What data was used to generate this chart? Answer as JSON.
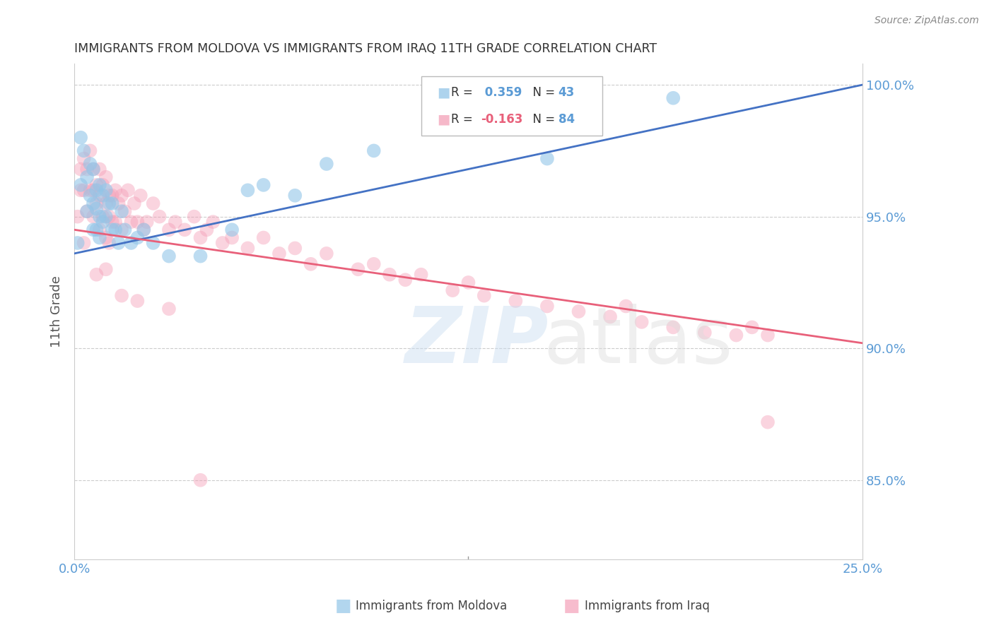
{
  "title": "IMMIGRANTS FROM MOLDOVA VS IMMIGRANTS FROM IRAQ 11TH GRADE CORRELATION CHART",
  "source": "Source: ZipAtlas.com",
  "ylabel": "11th Grade",
  "xlim": [
    0.0,
    0.25
  ],
  "ylim": [
    0.82,
    1.008
  ],
  "R_moldova": 0.359,
  "N_moldova": 43,
  "R_iraq": -0.163,
  "N_iraq": 84,
  "color_moldova": "#92C5E8",
  "color_iraq": "#F4A0B8",
  "color_moldova_line": "#4472C4",
  "color_iraq_line": "#E8607A",
  "color_axis_labels": "#5B9BD5",
  "moldova_x": [
    0.001,
    0.002,
    0.002,
    0.003,
    0.004,
    0.004,
    0.005,
    0.005,
    0.006,
    0.006,
    0.006,
    0.007,
    0.007,
    0.007,
    0.008,
    0.008,
    0.008,
    0.009,
    0.009,
    0.01,
    0.01,
    0.011,
    0.012,
    0.012,
    0.013,
    0.014,
    0.015,
    0.016,
    0.018,
    0.02,
    0.022,
    0.025,
    0.03,
    0.04,
    0.05,
    0.055,
    0.06,
    0.07,
    0.08,
    0.095,
    0.12,
    0.15,
    0.19
  ],
  "moldova_y": [
    0.94,
    0.98,
    0.962,
    0.975,
    0.965,
    0.952,
    0.97,
    0.958,
    0.968,
    0.955,
    0.945,
    0.96,
    0.953,
    0.945,
    0.962,
    0.95,
    0.942,
    0.958,
    0.948,
    0.96,
    0.95,
    0.955,
    0.945,
    0.955,
    0.945,
    0.94,
    0.952,
    0.945,
    0.94,
    0.942,
    0.945,
    0.94,
    0.935,
    0.935,
    0.945,
    0.96,
    0.962,
    0.958,
    0.97,
    0.975,
    0.985,
    0.972,
    0.995
  ],
  "moldova_sizes": [
    200,
    150,
    120,
    100,
    100,
    100,
    100,
    100,
    100,
    100,
    100,
    100,
    100,
    100,
    100,
    100,
    100,
    100,
    100,
    100,
    100,
    100,
    100,
    100,
    100,
    100,
    100,
    100,
    100,
    100,
    100,
    100,
    100,
    100,
    100,
    100,
    100,
    100,
    100,
    100,
    100,
    100,
    100
  ],
  "iraq_x": [
    0.001,
    0.002,
    0.002,
    0.003,
    0.003,
    0.004,
    0.004,
    0.005,
    0.005,
    0.006,
    0.006,
    0.006,
    0.007,
    0.007,
    0.008,
    0.008,
    0.008,
    0.009,
    0.009,
    0.01,
    0.01,
    0.01,
    0.011,
    0.011,
    0.011,
    0.012,
    0.012,
    0.013,
    0.013,
    0.014,
    0.015,
    0.015,
    0.016,
    0.017,
    0.018,
    0.019,
    0.02,
    0.021,
    0.022,
    0.023,
    0.025,
    0.027,
    0.03,
    0.032,
    0.035,
    0.038,
    0.04,
    0.042,
    0.044,
    0.047,
    0.05,
    0.055,
    0.06,
    0.065,
    0.07,
    0.075,
    0.08,
    0.09,
    0.095,
    0.1,
    0.105,
    0.11,
    0.12,
    0.125,
    0.13,
    0.14,
    0.15,
    0.16,
    0.17,
    0.175,
    0.18,
    0.19,
    0.2,
    0.21,
    0.215,
    0.22,
    0.003,
    0.007,
    0.01,
    0.015,
    0.02,
    0.03,
    0.04,
    0.22
  ],
  "iraq_y": [
    0.95,
    0.968,
    0.96,
    0.972,
    0.96,
    0.968,
    0.952,
    0.975,
    0.96,
    0.968,
    0.96,
    0.95,
    0.962,
    0.955,
    0.968,
    0.958,
    0.945,
    0.962,
    0.95,
    0.965,
    0.955,
    0.942,
    0.958,
    0.95,
    0.94,
    0.958,
    0.948,
    0.96,
    0.948,
    0.955,
    0.958,
    0.945,
    0.952,
    0.96,
    0.948,
    0.955,
    0.948,
    0.958,
    0.945,
    0.948,
    0.955,
    0.95,
    0.945,
    0.948,
    0.945,
    0.95,
    0.942,
    0.945,
    0.948,
    0.94,
    0.942,
    0.938,
    0.942,
    0.936,
    0.938,
    0.932,
    0.936,
    0.93,
    0.932,
    0.928,
    0.926,
    0.928,
    0.922,
    0.925,
    0.92,
    0.918,
    0.916,
    0.914,
    0.912,
    0.916,
    0.91,
    0.908,
    0.906,
    0.905,
    0.908,
    0.905,
    0.94,
    0.928,
    0.93,
    0.92,
    0.918,
    0.915,
    0.85,
    0.872
  ],
  "iraq_sizes": [
    100,
    100,
    100,
    100,
    100,
    100,
    100,
    100,
    100,
    100,
    100,
    100,
    100,
    100,
    100,
    100,
    100,
    100,
    100,
    100,
    100,
    100,
    100,
    100,
    100,
    100,
    100,
    100,
    100,
    100,
    100,
    100,
    100,
    100,
    100,
    100,
    100,
    100,
    100,
    100,
    100,
    100,
    100,
    100,
    100,
    100,
    100,
    100,
    100,
    100,
    100,
    100,
    100,
    100,
    100,
    100,
    100,
    100,
    100,
    100,
    100,
    100,
    100,
    100,
    100,
    100,
    100,
    100,
    100,
    100,
    100,
    100,
    100,
    100,
    100,
    100,
    100,
    100,
    100,
    100,
    100,
    100,
    100,
    100
  ],
  "trend_moldova_x0": 0.0,
  "trend_moldova_y0": 0.936,
  "trend_moldova_x1": 0.25,
  "trend_moldova_y1": 1.0,
  "trend_iraq_x0": 0.0,
  "trend_iraq_y0": 0.945,
  "trend_iraq_x1": 0.25,
  "trend_iraq_y1": 0.902,
  "y_ticks": [
    0.85,
    0.9,
    0.95,
    1.0
  ],
  "y_tick_labels": [
    "85.0%",
    "90.0%",
    "95.0%",
    "100.0%"
  ],
  "x_tick_labels": [
    "0.0%",
    "",
    "",
    "",
    "",
    "25.0%"
  ],
  "legend_R1_label": "R = ",
  "legend_R1_val": " 0.359",
  "legend_N1_label": "  N = ",
  "legend_N1_val": "43",
  "legend_R2_label": "R = ",
  "legend_R2_val": "-0.163",
  "legend_N2_label": "  N = ",
  "legend_N2_val": "84"
}
